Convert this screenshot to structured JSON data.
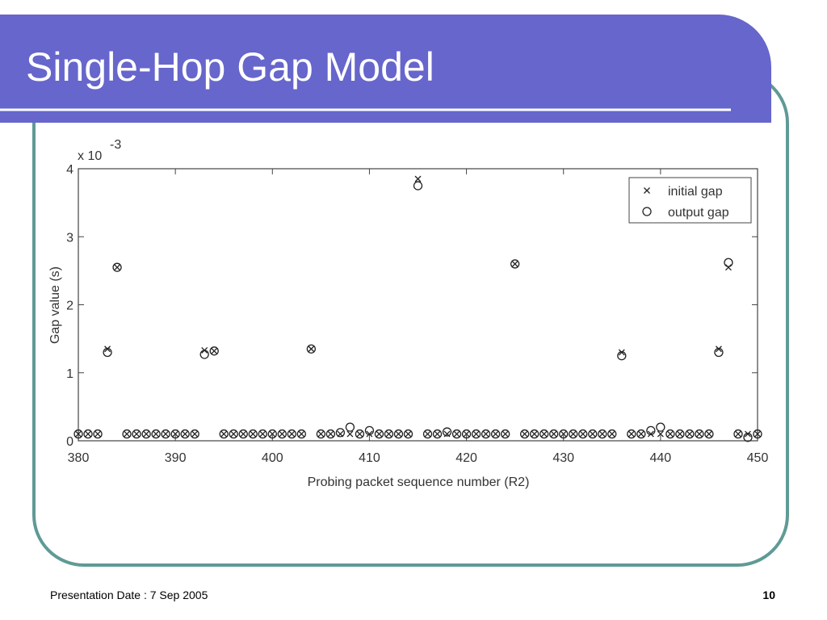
{
  "slide": {
    "title": "Single-Hop Gap Model",
    "footer": "Presentation Date : 7 Sep 2005",
    "page_number": "10"
  },
  "chart_data": {
    "type": "scatter",
    "xlabel": "Probing packet sequence number (R2)",
    "ylabel": "Gap value (s)",
    "y_scale_label": "x 10",
    "y_scale_exponent": "-3",
    "xlim": [
      380,
      450
    ],
    "xticks": [
      380,
      390,
      400,
      410,
      420,
      430,
      440,
      450
    ],
    "ylim": [
      0,
      4
    ],
    "yticks": [
      0,
      1,
      2,
      3,
      4
    ],
    "grid": false,
    "legend": "upper right",
    "x": [
      380,
      381,
      382,
      383,
      384,
      385,
      386,
      387,
      388,
      389,
      390,
      391,
      392,
      393,
      394,
      395,
      396,
      397,
      398,
      399,
      400,
      401,
      402,
      403,
      404,
      405,
      406,
      407,
      408,
      409,
      410,
      411,
      412,
      413,
      414,
      415,
      416,
      417,
      418,
      419,
      420,
      421,
      422,
      423,
      424,
      425,
      426,
      427,
      428,
      429,
      430,
      431,
      432,
      433,
      434,
      435,
      436,
      437,
      438,
      439,
      440,
      441,
      442,
      443,
      444,
      445,
      446,
      447,
      448,
      449,
      450
    ],
    "series": [
      {
        "name": "initial gap",
        "marker": "x",
        "color": "#222222",
        "values": [
          0.1,
          0.1,
          0.1,
          1.35,
          2.55,
          0.1,
          0.1,
          0.1,
          0.1,
          0.1,
          0.1,
          0.1,
          0.1,
          1.33,
          1.32,
          0.1,
          0.1,
          0.1,
          0.1,
          0.1,
          0.1,
          0.1,
          0.1,
          0.1,
          1.35,
          0.1,
          0.1,
          0.1,
          0.1,
          0.1,
          0.1,
          0.1,
          0.1,
          0.1,
          0.1,
          3.85,
          0.1,
          0.1,
          0.1,
          0.1,
          0.1,
          0.1,
          0.1,
          0.1,
          0.1,
          2.6,
          0.1,
          0.1,
          0.1,
          0.1,
          0.1,
          0.1,
          0.1,
          0.1,
          0.1,
          0.1,
          1.3,
          0.1,
          0.1,
          0.1,
          0.1,
          0.1,
          0.1,
          0.1,
          0.1,
          0.1,
          1.35,
          2.55,
          0.1,
          0.1,
          0.1
        ]
      },
      {
        "name": "output gap",
        "marker": "o",
        "color": "#222222",
        "values": [
          0.1,
          0.1,
          0.1,
          1.3,
          2.55,
          0.1,
          0.1,
          0.1,
          0.1,
          0.1,
          0.1,
          0.1,
          0.1,
          1.27,
          1.32,
          0.1,
          0.1,
          0.1,
          0.1,
          0.1,
          0.1,
          0.1,
          0.1,
          0.1,
          1.35,
          0.1,
          0.1,
          0.12,
          0.2,
          0.1,
          0.15,
          0.1,
          0.1,
          0.1,
          0.1,
          3.75,
          0.1,
          0.1,
          0.13,
          0.1,
          0.1,
          0.1,
          0.1,
          0.1,
          0.1,
          2.6,
          0.1,
          0.1,
          0.1,
          0.1,
          0.1,
          0.1,
          0.1,
          0.1,
          0.1,
          0.1,
          1.25,
          0.1,
          0.1,
          0.15,
          0.2,
          0.1,
          0.1,
          0.1,
          0.1,
          0.1,
          1.3,
          2.62,
          0.1,
          0.05,
          0.1
        ]
      }
    ]
  }
}
